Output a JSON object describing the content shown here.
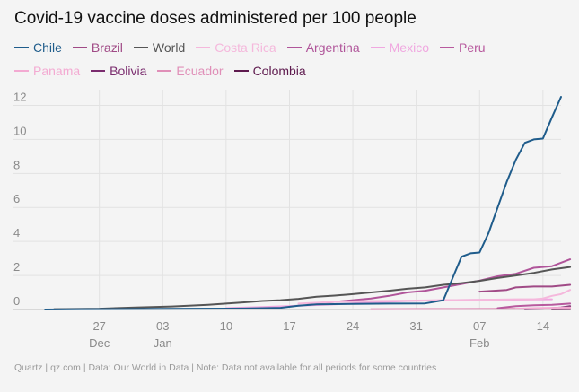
{
  "chart_data": {
    "type": "line",
    "title": "Covid-19 vaccine doses administered per 100 people",
    "xlabel": "",
    "ylabel": "",
    "x_domain": [
      0,
      59
    ],
    "ylim": [
      0,
      12.5
    ],
    "yticks": [
      0,
      2,
      4,
      6,
      8,
      10,
      12
    ],
    "xticks": [
      {
        "x": 8,
        "label": "27",
        "sublabel": "Dec"
      },
      {
        "x": 15,
        "label": "03",
        "sublabel": "Jan"
      },
      {
        "x": 22,
        "label": "10",
        "sublabel": ""
      },
      {
        "x": 29,
        "label": "17",
        "sublabel": ""
      },
      {
        "x": 36,
        "label": "24",
        "sublabel": ""
      },
      {
        "x": 43,
        "label": "31",
        "sublabel": ""
      },
      {
        "x": 50,
        "label": "07",
        "sublabel": "Feb"
      },
      {
        "x": 57,
        "label": "14",
        "sublabel": ""
      }
    ],
    "grid": true,
    "legend": "top",
    "series": [
      {
        "name": "Chile",
        "color": "#1f5c8b",
        "points": [
          [
            2,
            0.0
          ],
          [
            6,
            0.02
          ],
          [
            12,
            0.03
          ],
          [
            18,
            0.05
          ],
          [
            24,
            0.06
          ],
          [
            28,
            0.1
          ],
          [
            30,
            0.22
          ],
          [
            32,
            0.3
          ],
          [
            36,
            0.33
          ],
          [
            40,
            0.35
          ],
          [
            44,
            0.36
          ],
          [
            46,
            0.55
          ],
          [
            48,
            3.1
          ],
          [
            49,
            3.3
          ],
          [
            50,
            3.35
          ],
          [
            51,
            4.5
          ],
          [
            52,
            6.0
          ],
          [
            53,
            7.5
          ],
          [
            54,
            8.8
          ],
          [
            55,
            9.8
          ],
          [
            56,
            10.0
          ],
          [
            57,
            10.05
          ],
          [
            58,
            11.3
          ],
          [
            59,
            12.5
          ]
        ]
      },
      {
        "name": "Brazil",
        "color": "#a04a86",
        "points": [
          [
            50,
            1.05
          ],
          [
            53,
            1.15
          ],
          [
            54,
            1.3
          ],
          [
            56,
            1.35
          ],
          [
            58,
            1.35
          ],
          [
            60,
            1.45
          ]
        ]
      },
      {
        "name": "World",
        "color": "#555555",
        "points": [
          [
            3,
            0.02
          ],
          [
            8,
            0.05
          ],
          [
            12,
            0.12
          ],
          [
            16,
            0.18
          ],
          [
            20,
            0.28
          ],
          [
            22,
            0.35
          ],
          [
            24,
            0.42
          ],
          [
            26,
            0.5
          ],
          [
            28,
            0.55
          ],
          [
            30,
            0.63
          ],
          [
            32,
            0.75
          ],
          [
            34,
            0.82
          ],
          [
            36,
            0.9
          ],
          [
            38,
            1.0
          ],
          [
            40,
            1.1
          ],
          [
            42,
            1.22
          ],
          [
            44,
            1.3
          ],
          [
            46,
            1.45
          ],
          [
            48,
            1.55
          ],
          [
            50,
            1.68
          ],
          [
            52,
            1.85
          ],
          [
            54,
            2.0
          ],
          [
            56,
            2.15
          ],
          [
            58,
            2.35
          ],
          [
            60,
            2.5
          ]
        ]
      },
      {
        "name": "Costa Rica",
        "color": "#f5b8dc",
        "points": [
          [
            30,
            0.35
          ],
          [
            34,
            0.45
          ],
          [
            38,
            0.5
          ],
          [
            42,
            0.52
          ],
          [
            46,
            0.55
          ],
          [
            50,
            0.57
          ],
          [
            54,
            0.6
          ],
          [
            56,
            0.6
          ],
          [
            57,
            0.65
          ],
          [
            58,
            0.8
          ],
          [
            59,
            0.9
          ],
          [
            60,
            1.15
          ]
        ]
      },
      {
        "name": "Argentina",
        "color": "#b0559a",
        "points": [
          [
            31,
            0.35
          ],
          [
            34,
            0.45
          ],
          [
            36,
            0.55
          ],
          [
            38,
            0.65
          ],
          [
            40,
            0.8
          ],
          [
            42,
            1.0
          ],
          [
            44,
            1.1
          ],
          [
            46,
            1.3
          ],
          [
            48,
            1.5
          ],
          [
            50,
            1.7
          ],
          [
            52,
            1.95
          ],
          [
            54,
            2.1
          ],
          [
            56,
            2.45
          ],
          [
            58,
            2.55
          ],
          [
            60,
            2.95
          ]
        ]
      },
      {
        "name": "Mexico",
        "color": "#f0a8e0",
        "points": [
          [
            22,
            0.08
          ],
          [
            26,
            0.15
          ],
          [
            30,
            0.22
          ],
          [
            34,
            0.3
          ],
          [
            38,
            0.42
          ],
          [
            42,
            0.5
          ],
          [
            46,
            0.55
          ],
          [
            50,
            0.57
          ],
          [
            54,
            0.58
          ],
          [
            58,
            0.6
          ]
        ]
      },
      {
        "name": "Peru",
        "color": "#b85a9e",
        "points": [
          [
            52,
            0.08
          ],
          [
            54,
            0.2
          ],
          [
            56,
            0.25
          ],
          [
            58,
            0.28
          ],
          [
            60,
            0.35
          ]
        ]
      },
      {
        "name": "Panama",
        "color": "#f3aad2",
        "points": [
          [
            54,
            0.05
          ],
          [
            56,
            0.08
          ],
          [
            58,
            0.1
          ],
          [
            60,
            0.12
          ]
        ]
      },
      {
        "name": "Bolivia",
        "color": "#7a2c6e",
        "points": [
          [
            55,
            0.02
          ],
          [
            57,
            0.05
          ],
          [
            59,
            0.12
          ],
          [
            60,
            0.2
          ]
        ]
      },
      {
        "name": "Ecuador",
        "color": "#e08fb8",
        "points": [
          [
            38,
            0.02
          ],
          [
            44,
            0.03
          ],
          [
            48,
            0.03
          ],
          [
            52,
            0.04
          ],
          [
            56,
            0.05
          ],
          [
            60,
            0.05
          ]
        ]
      },
      {
        "name": "Colombia",
        "color": "#5e1a4e",
        "points": [
          [
            58,
            0.01
          ],
          [
            60,
            0.02
          ]
        ]
      }
    ]
  },
  "footer": "Quartz | qz.com | Data: Our World in Data | Note: Data not available for all periods for some countries"
}
